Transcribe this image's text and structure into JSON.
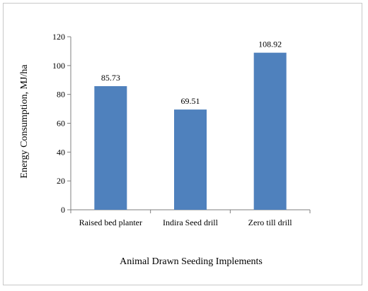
{
  "chart_data": {
    "type": "bar",
    "categories": [
      "Raised bed planter",
      "Indira Seed drill",
      "Zero till drill"
    ],
    "values": [
      85.73,
      69.51,
      108.92
    ],
    "data_labels": [
      "85.73",
      "69.51",
      "108.92"
    ],
    "title": "",
    "xlabel": "Animal Drawn Seeding Implements",
    "ylabel": "Energy Consumption, MJ/ha",
    "ylim": [
      0,
      120
    ],
    "yticks": [
      0,
      20,
      40,
      60,
      80,
      100,
      120
    ],
    "grid": false,
    "legend": "none",
    "bar_color": "#4f81bd"
  }
}
